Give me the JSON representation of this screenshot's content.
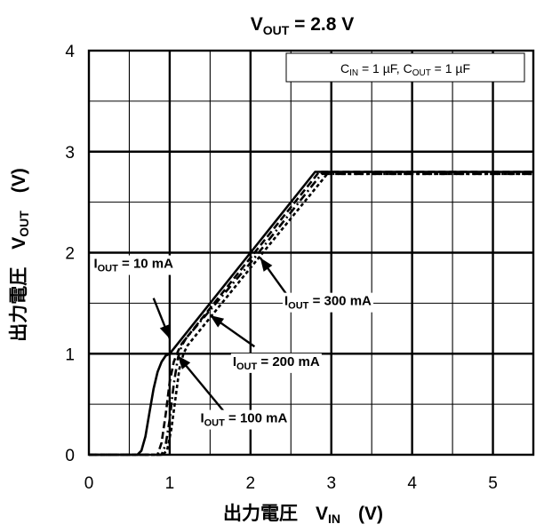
{
  "chart_data": {
    "type": "line",
    "title": {
      "main": "V",
      "sub": "OUT",
      "rest": " = 2.8 V"
    },
    "legend_box": {
      "c_in": "C",
      "c_in_sub": "IN",
      "c_in_rest": " = 1 µF, ",
      "c_out": "C",
      "c_out_sub": "OUT",
      "c_out_rest": " = 1 µF"
    },
    "xlabel": {
      "jp": "出力電圧",
      "sym": "V",
      "sub": "IN",
      "unit": "(V)"
    },
    "ylabel": {
      "jp": "出力電圧",
      "sym": "V",
      "sub": "OUT",
      "unit": "(V)"
    },
    "xlim": [
      0,
      5.5
    ],
    "ylim": [
      0,
      4
    ],
    "x_ticks": [
      "0",
      "1",
      "2",
      "3",
      "4",
      "5"
    ],
    "y_ticks": [
      "0",
      "1",
      "2",
      "3",
      "4"
    ],
    "grid": true,
    "series": [
      {
        "name": "I_OUT = 10 mA",
        "style": "solid",
        "x": [
          0,
          0.6,
          0.65,
          0.7,
          0.75,
          0.8,
          0.85,
          0.9,
          0.95,
          1.0,
          2.0,
          2.8,
          5.5
        ],
        "y": [
          0,
          0,
          0.04,
          0.18,
          0.42,
          0.65,
          0.82,
          0.92,
          0.98,
          1.0,
          2.0,
          2.8,
          2.8
        ]
      },
      {
        "name": "I_OUT = 100 mA",
        "style": "dashdot",
        "x": [
          0,
          0.9,
          0.95,
          1.0,
          1.05,
          1.1,
          1.15,
          1.2,
          2.0,
          2.88,
          5.5
        ],
        "y": [
          0,
          0,
          0.1,
          0.35,
          0.7,
          0.95,
          1.08,
          1.15,
          1.9,
          2.78,
          2.78
        ]
      },
      {
        "name": "I_OUT = 200 mA",
        "style": "dashed-long",
        "x": [
          0,
          0.85,
          0.9,
          0.95,
          1.0,
          1.05,
          1.1,
          1.15,
          2.0,
          2.85,
          5.5
        ],
        "y": [
          0,
          0,
          0.12,
          0.4,
          0.72,
          0.92,
          1.02,
          1.1,
          1.95,
          2.8,
          2.8
        ]
      },
      {
        "name": "I_OUT = 300 mA",
        "style": "dashed-short",
        "x": [
          0,
          0.92,
          0.97,
          1.02,
          1.07,
          1.12,
          1.17,
          1.22,
          2.0,
          2.95,
          5.5
        ],
        "y": [
          0,
          0,
          0.05,
          0.25,
          0.55,
          0.85,
          1.0,
          1.08,
          1.85,
          2.78,
          2.78
        ]
      }
    ],
    "annotations": [
      {
        "label_main": "I",
        "label_sub": "OUT",
        "label_rest": " = 10 mA",
        "text_x": 0.06,
        "text_y": 1.85,
        "tail_x": 0.8,
        "tail_y": 1.55,
        "head_x": 1.0,
        "head_y": 1.15
      },
      {
        "label_main": "I",
        "label_sub": "OUT",
        "label_rest": " = 300 mA",
        "text_x": 2.42,
        "text_y": 1.48,
        "tail_x": 2.48,
        "tail_y": 1.55,
        "head_x": 2.12,
        "head_y": 1.95
      },
      {
        "label_main": "I",
        "label_sub": "OUT",
        "label_rest": " = 200 mA",
        "text_x": 1.78,
        "text_y": 0.88,
        "tail_x": 2.05,
        "tail_y": 1.07,
        "head_x": 1.5,
        "head_y": 1.38
      },
      {
        "label_main": "I",
        "label_sub": "OUT",
        "label_rest": " = 100 mA",
        "text_x": 1.38,
        "text_y": 0.32,
        "tail_x": 1.68,
        "tail_y": 0.42,
        "head_x": 1.1,
        "head_y": 0.98
      }
    ]
  }
}
